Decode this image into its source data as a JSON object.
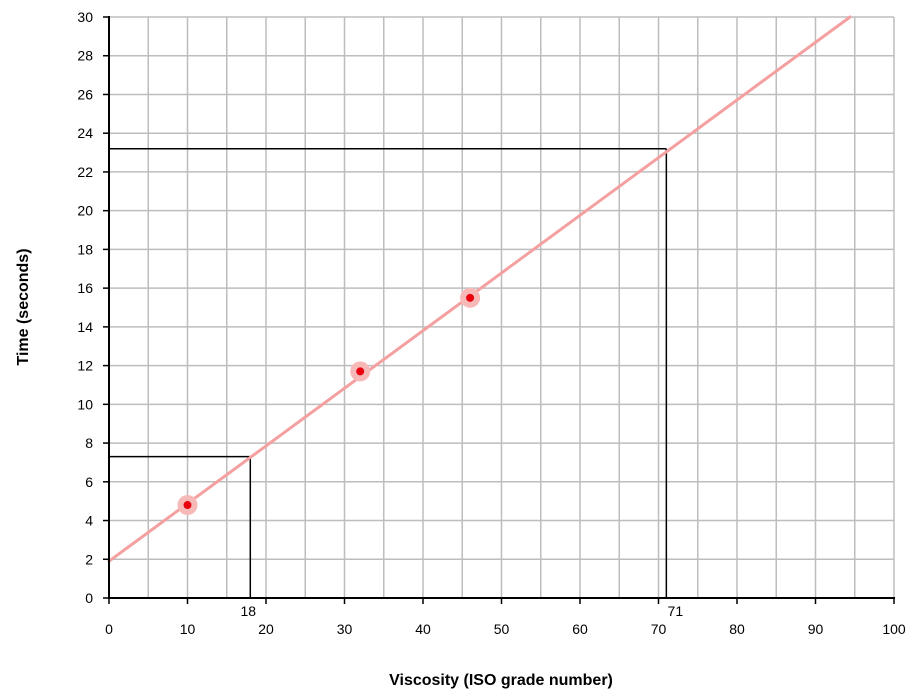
{
  "colors": {
    "grid": "#bdbdbd",
    "axis": "#000000",
    "trend_line": "#f5a0a0",
    "point_halo": "#f7b8b8",
    "point": "#e8000f",
    "guide": "#000000"
  },
  "chart_data": {
    "type": "scatter",
    "xlabel": "Viscosity (ISO grade number)",
    "ylabel": "Time (seconds)",
    "xlim": [
      0,
      100
    ],
    "ylim": [
      0,
      30
    ],
    "x_ticks": [
      0,
      10,
      20,
      30,
      40,
      50,
      60,
      70,
      80,
      90,
      100
    ],
    "y_ticks": [
      0,
      2,
      4,
      6,
      8,
      10,
      12,
      14,
      16,
      18,
      20,
      22,
      24,
      26,
      28,
      30
    ],
    "x_grid_step": 5,
    "y_grid_step": 2,
    "grid": true,
    "points": [
      {
        "x": 10,
        "y": 4.8
      },
      {
        "x": 32,
        "y": 11.7
      },
      {
        "x": 46,
        "y": 15.5
      }
    ],
    "trend_line": {
      "x": [
        0,
        94.4
      ],
      "y": [
        1.9,
        30
      ]
    },
    "guides": [
      {
        "x": 18,
        "y": 7.3,
        "label": "18"
      },
      {
        "x": 71,
        "y": 23.2,
        "label": "71"
      }
    ]
  }
}
